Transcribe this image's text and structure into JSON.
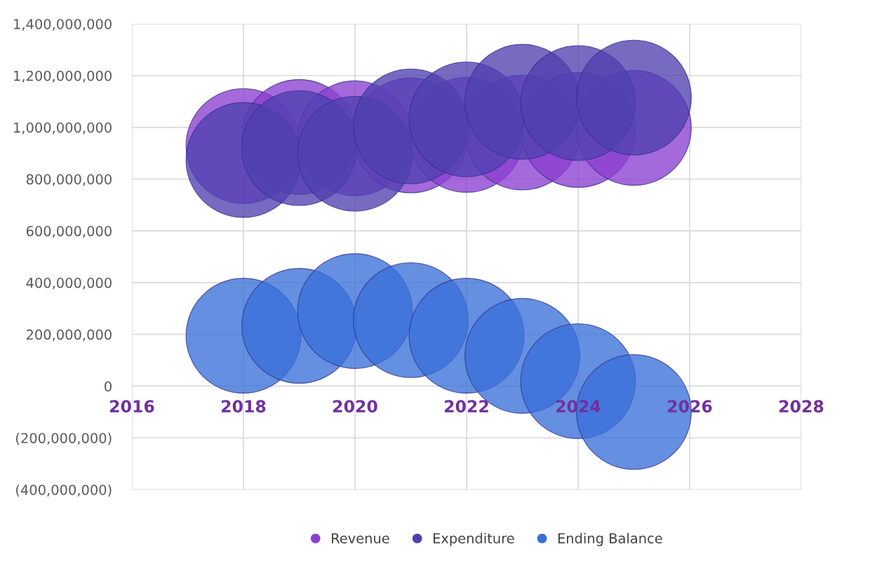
{
  "chart_data": {
    "type": "bubble",
    "x": [
      2018,
      2019,
      2020,
      2021,
      2022,
      2023,
      2024,
      2025
    ],
    "series": [
      {
        "name": "Revenue",
        "color": "#8a3fd0",
        "values": [
          928000000,
          963000000,
          958000000,
          969000000,
          971000000,
          980000000,
          990000000,
          998000000
        ],
        "sizes": [
          1,
          1,
          1,
          1,
          1,
          1,
          1,
          1
        ]
      },
      {
        "name": "Expenditure",
        "color": "#5040b0",
        "values": [
          874000000,
          920000000,
          898000000,
          1004000000,
          1031000000,
          1099000000,
          1094000000,
          1115000000
        ],
        "sizes": [
          1,
          1,
          1,
          1,
          1,
          1,
          1,
          1
        ]
      },
      {
        "name": "Ending Balance",
        "color": "#3a6fd8",
        "values": [
          195000000,
          233000000,
          290000000,
          255000000,
          195000000,
          117000000,
          19000000,
          -100000000
        ],
        "sizes": [
          1,
          1,
          1,
          1,
          1,
          1,
          1,
          1
        ]
      }
    ],
    "xlim": [
      2016,
      2028
    ],
    "xticks": [
      2016,
      2018,
      2020,
      2022,
      2024,
      2026,
      2028
    ],
    "ylim": [
      -400000000,
      1400000000
    ],
    "yticks": [
      {
        "value": -400000000,
        "label": "(400,000,000)"
      },
      {
        "value": -200000000,
        "label": "(200,000,000)"
      },
      {
        "value": 0,
        "label": "0"
      },
      {
        "value": 200000000,
        "label": "200,000,000"
      },
      {
        "value": 400000000,
        "label": "400,000,000"
      },
      {
        "value": 600000000,
        "label": "600,000,000"
      },
      {
        "value": 800000000,
        "label": "800,000,000"
      },
      {
        "value": 1000000000,
        "label": "1,000,000,000"
      },
      {
        "value": 1200000000,
        "label": "1,200,000,000"
      },
      {
        "value": 1400000000,
        "label": "1,400,000,000"
      }
    ],
    "grid": true,
    "legend": "bottom"
  }
}
